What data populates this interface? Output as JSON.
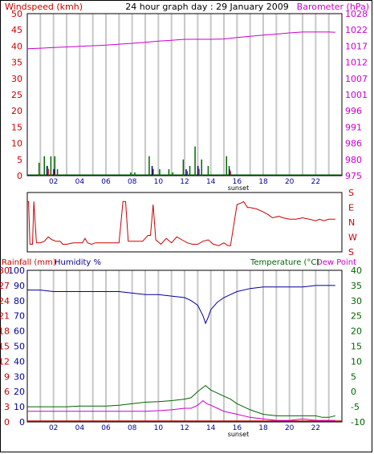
{
  "colors": {
    "red": "#cc0000",
    "magenta": "#cc00cc",
    "blue": "#000099",
    "green": "#006600",
    "grid": "#c8c8c8"
  },
  "chart_data": [
    {
      "name": "top",
      "type": "line",
      "title": "24 hour graph day : 29 January 2009",
      "left_label": "Windspeed (kmh)",
      "right_label": "Barometer (hPa)",
      "x_ticks": [
        "02",
        "04",
        "06",
        "08",
        "10",
        "12",
        "14",
        "16",
        "18",
        "20",
        "22"
      ],
      "x_annotation": "sunset",
      "xlim": [
        0,
        24
      ],
      "left_ticks": [
        "0",
        "5",
        "10",
        "15",
        "20",
        "25",
        "30",
        "35",
        "40",
        "45",
        "50"
      ],
      "left_ylim": [
        0,
        50
      ],
      "right_ticks": [
        "975",
        "980",
        "986",
        "991",
        "996",
        "1001",
        "1007",
        "1012",
        "1017",
        "1022",
        "1028"
      ],
      "right_ylim": [
        975,
        1028
      ],
      "barometer": {
        "x": [
          0,
          1,
          2,
          3,
          4,
          5,
          6,
          7,
          8,
          9,
          10,
          11,
          12,
          13,
          14,
          15,
          16,
          17,
          18,
          19,
          20,
          21,
          22,
          23,
          23.5
        ],
        "y": [
          1016.5,
          1016.7,
          1016.9,
          1017.1,
          1017.3,
          1017.5,
          1017.7,
          1018.0,
          1018.3,
          1018.6,
          1019.0,
          1019.3,
          1019.6,
          1019.6,
          1019.6,
          1019.7,
          1020.2,
          1020.6,
          1021.0,
          1021.3,
          1021.7,
          1022.0,
          1022.0,
          1022.0,
          1021.9
        ]
      },
      "wind_gust": [
        {
          "x": 0.9,
          "y": 4
        },
        {
          "x": 1.3,
          "y": 6
        },
        {
          "x": 1.5,
          "y": 3
        },
        {
          "x": 1.8,
          "y": 6
        },
        {
          "x": 2.1,
          "y": 6
        },
        {
          "x": 2.3,
          "y": 2
        },
        {
          "x": 7.9,
          "y": 1
        },
        {
          "x": 8.2,
          "y": 1
        },
        {
          "x": 9.3,
          "y": 6
        },
        {
          "x": 9.6,
          "y": 2
        },
        {
          "x": 10.1,
          "y": 2
        },
        {
          "x": 10.8,
          "y": 2
        },
        {
          "x": 11.1,
          "y": 1
        },
        {
          "x": 11.9,
          "y": 5
        },
        {
          "x": 12.4,
          "y": 3
        },
        {
          "x": 12.8,
          "y": 9
        },
        {
          "x": 13.3,
          "y": 5
        },
        {
          "x": 13.8,
          "y": 3
        },
        {
          "x": 15.2,
          "y": 6
        },
        {
          "x": 15.4,
          "y": 3
        }
      ],
      "wind_avg": [
        {
          "x": 1.4,
          "y": 3
        },
        {
          "x": 1.9,
          "y": 2
        },
        {
          "x": 9.4,
          "y": 3
        },
        {
          "x": 12.0,
          "y": 2
        },
        {
          "x": 12.9,
          "y": 3
        },
        {
          "x": 15.3,
          "y": 2
        }
      ]
    },
    {
      "name": "direction",
      "type": "line",
      "right_ticks": [
        "S",
        "E",
        "N",
        "W",
        "S"
      ],
      "ylim": [
        0,
        360
      ],
      "xlim": [
        0,
        24
      ],
      "x": [
        0,
        0.1,
        0.2,
        0.4,
        0.5,
        0.7,
        1.0,
        1.3,
        1.6,
        1.9,
        2.2,
        2.5,
        2.7,
        3.0,
        3.5,
        4.0,
        4.2,
        4.4,
        4.6,
        4.9,
        5.2,
        5.6,
        6.0,
        6.3,
        6.6,
        7.0,
        7.3,
        7.5,
        7.7,
        8.0,
        8.4,
        8.8,
        9.2,
        9.4,
        9.6,
        9.8,
        10.2,
        10.6,
        11.0,
        11.4,
        11.8,
        12.2,
        12.6,
        13.0,
        13.4,
        13.8,
        14.2,
        14.6,
        15.0,
        15.3,
        15.5,
        16.0,
        16.3,
        16.5,
        16.8,
        17.0,
        17.5,
        18.0,
        18.4,
        18.7,
        19.2,
        19.5,
        20.0,
        20.5,
        21.0,
        21.5,
        22.0,
        22.3,
        22.6,
        23.0,
        23.5
      ],
      "y": [
        320,
        320,
        30,
        30,
        320,
        40,
        40,
        50,
        80,
        60,
        50,
        50,
        30,
        30,
        40,
        40,
        40,
        70,
        40,
        30,
        40,
        40,
        40,
        40,
        40,
        40,
        320,
        320,
        50,
        50,
        50,
        50,
        90,
        90,
        300,
        60,
        30,
        70,
        40,
        80,
        60,
        40,
        30,
        30,
        50,
        60,
        30,
        20,
        40,
        20,
        20,
        300,
        310,
        320,
        280,
        280,
        270,
        250,
        230,
        210,
        220,
        210,
        200,
        200,
        210,
        200,
        190,
        200,
        190,
        200,
        200
      ]
    },
    {
      "name": "bottom",
      "type": "line",
      "left_label_rain": "Rainfall (mm)",
      "left_label_humidity": "Humidity %",
      "right_label_temp": "Temperature (°C)",
      "right_label_dew": "Dew Point",
      "x_ticks": [
        "02",
        "04",
        "06",
        "08",
        "10",
        "12",
        "14",
        "16",
        "18",
        "20",
        "22"
      ],
      "x_annotation": "sunset",
      "xlim": [
        0,
        24
      ],
      "humidity_ticks": [
        "0",
        "10",
        "20",
        "30",
        "40",
        "50",
        "60",
        "70",
        "80",
        "90",
        "100"
      ],
      "humidity_ylim": [
        0,
        100
      ],
      "rain_ticks": [
        "0",
        "3",
        "6",
        "9",
        "12",
        "15",
        "18",
        "21",
        "24",
        "27",
        "30"
      ],
      "rain_ylim": [
        0,
        30
      ],
      "temp_ticks": [
        "-10",
        "-5",
        "0",
        "5",
        "10",
        "15",
        "20",
        "25",
        "30",
        "35",
        "40"
      ],
      "temp_ylim": [
        -10,
        40
      ],
      "humidity": {
        "x": [
          0,
          1,
          2,
          3,
          4,
          5,
          6,
          7,
          8,
          9,
          10,
          11,
          12,
          12.5,
          13,
          13.4,
          13.6,
          13.8,
          14,
          14.5,
          15,
          15.5,
          16,
          17,
          18,
          19,
          20,
          21,
          22,
          23,
          23.5
        ],
        "y": [
          87,
          87,
          86,
          86,
          86,
          86,
          86,
          86,
          85,
          84,
          84,
          83,
          82,
          80,
          77,
          70,
          65,
          69,
          74,
          79,
          82,
          84,
          86,
          88,
          89,
          89,
          89,
          89,
          90,
          90,
          90
        ]
      },
      "temperature": {
        "x": [
          0,
          1,
          2,
          3,
          4,
          5,
          6,
          7,
          8,
          9,
          10,
          11,
          12,
          12.5,
          13,
          13.3,
          13.6,
          14,
          14.5,
          15,
          15.5,
          16,
          17,
          18,
          19,
          20,
          21,
          22,
          22.5,
          23,
          23.5
        ],
        "y": [
          -5.0,
          -5.0,
          -5.0,
          -5.0,
          -4.8,
          -4.8,
          -4.8,
          -4.5,
          -4.0,
          -3.5,
          -3.3,
          -3.0,
          -2.5,
          -2.0,
          0.0,
          1.0,
          2.0,
          0.5,
          -0.5,
          -1.5,
          -2.5,
          -4.0,
          -6.0,
          -7.5,
          -8.0,
          -8.0,
          -8.0,
          -8.0,
          -8.5,
          -8.5,
          -8.0
        ]
      },
      "dew_point": {
        "x": [
          0,
          1,
          2,
          3,
          4,
          5,
          6,
          7,
          8,
          9,
          10,
          11,
          12,
          12.5,
          13,
          13.4,
          13.7,
          14,
          14.5,
          15,
          16,
          17,
          18,
          19,
          20,
          21,
          22,
          23,
          23.5
        ],
        "y": [
          -6.5,
          -6.5,
          -6.5,
          -6.5,
          -6.5,
          -6.5,
          -6.5,
          -6.5,
          -6.5,
          -6.5,
          -6.3,
          -6.0,
          -5.5,
          -5.5,
          -4.5,
          -3.0,
          -4.0,
          -4.5,
          -5.5,
          -6.5,
          -7.5,
          -8.5,
          -9.0,
          -9.5,
          -9.5,
          -9.0,
          -9.5,
          -9.5,
          -9.5
        ]
      },
      "rainfall": {
        "x": [
          0,
          24
        ],
        "y": [
          0,
          0
        ]
      }
    }
  ]
}
